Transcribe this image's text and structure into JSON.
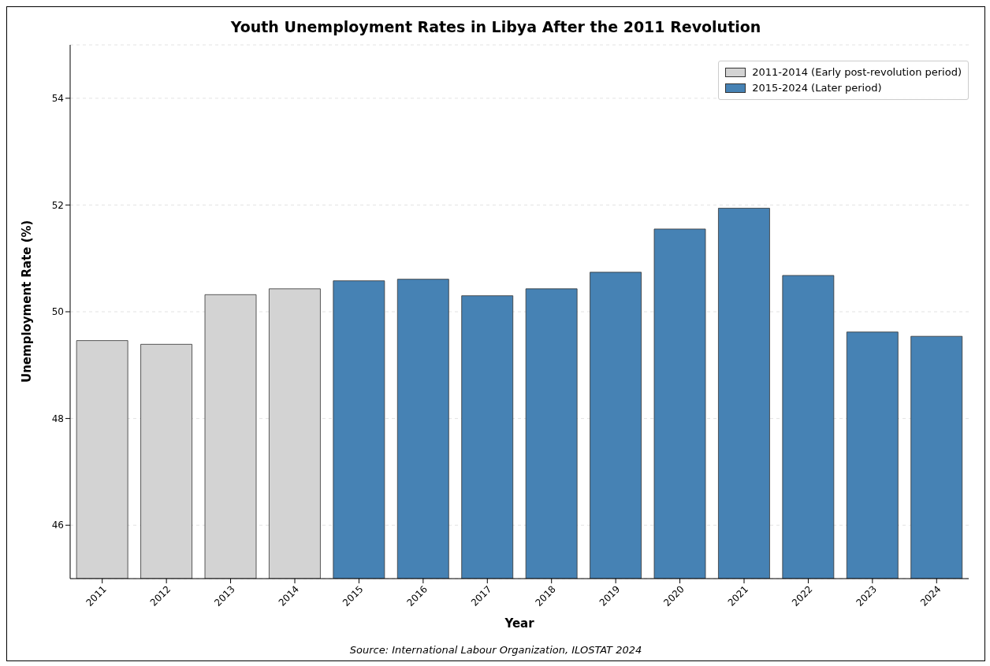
{
  "chart_data": {
    "type": "bar",
    "title": "Youth Unemployment Rates in Libya After the 2011 Revolution",
    "xlabel": "Year",
    "ylabel": "Unemployment Rate (%)",
    "annotations": [
      "Source: International Labour Organization, ILOSTAT 2024"
    ],
    "categories": [
      "2011",
      "2012",
      "2013",
      "2014",
      "2015",
      "2016",
      "2017",
      "2018",
      "2019",
      "2020",
      "2021",
      "2022",
      "2023",
      "2024"
    ],
    "series": [
      {
        "name": "2011-2014 (Early post-revolution period)",
        "color": "#d3d3d3",
        "values": [
          49.46,
          49.39,
          50.32,
          50.43,
          null,
          null,
          null,
          null,
          null,
          null,
          null,
          null,
          null,
          null
        ]
      },
      {
        "name": "2015-2024 (Later period)",
        "color": "#4682b4",
        "values": [
          null,
          null,
          null,
          null,
          50.58,
          50.61,
          50.3,
          50.43,
          50.74,
          51.55,
          51.94,
          50.68,
          49.62,
          49.54
        ]
      }
    ],
    "ylim": [
      45,
      55
    ],
    "yticks": [
      46,
      48,
      50,
      52,
      54
    ],
    "grid": "y",
    "legend": "top right"
  }
}
